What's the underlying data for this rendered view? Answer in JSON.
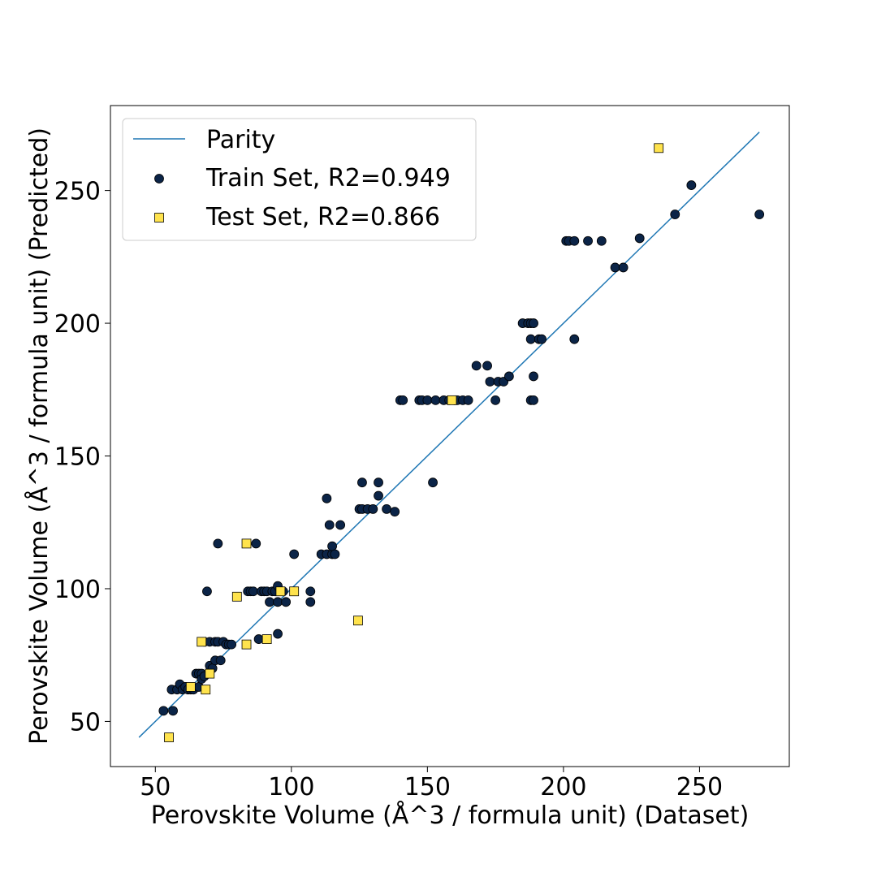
{
  "chart_data": {
    "type": "scatter",
    "xlabel": "Perovskite Volume (Å^3 / formula unit) (Dataset)",
    "ylabel": "Perovskite Volume (Å^3 / formula unit) (Predicted)",
    "xlim": [
      33.5,
      283
    ],
    "ylim": [
      33,
      282
    ],
    "xticks": [
      50,
      100,
      150,
      200,
      250
    ],
    "yticks": [
      50,
      100,
      150,
      200,
      250
    ],
    "grid": false,
    "legend_position": "top-left",
    "parity": {
      "name": "Parity",
      "color": "#1f77b4",
      "x": [
        44,
        272
      ],
      "y": [
        44,
        272
      ]
    },
    "series": [
      {
        "name": "Train Set, R2=0.949",
        "marker": "circle",
        "color": "#0b2447",
        "points": [
          [
            53,
            54
          ],
          [
            56.5,
            54
          ],
          [
            56,
            62
          ],
          [
            58,
            62
          ],
          [
            59,
            64
          ],
          [
            60,
            62
          ],
          [
            61,
            63
          ],
          [
            62,
            62
          ],
          [
            63,
            62
          ],
          [
            64,
            62
          ],
          [
            65,
            68
          ],
          [
            66,
            68
          ],
          [
            66,
            63
          ],
          [
            67,
            68
          ],
          [
            67,
            66
          ],
          [
            68,
            67
          ],
          [
            68,
            80
          ],
          [
            69,
            99
          ],
          [
            70,
            80
          ],
          [
            70,
            71
          ],
          [
            71,
            70
          ],
          [
            72,
            73
          ],
          [
            72,
            80
          ],
          [
            73,
            80
          ],
          [
            73,
            117
          ],
          [
            74,
            73
          ],
          [
            75,
            80
          ],
          [
            76,
            79
          ],
          [
            77,
            79
          ],
          [
            78,
            79
          ],
          [
            84,
            99
          ],
          [
            85,
            99
          ],
          [
            86,
            99
          ],
          [
            87,
            117
          ],
          [
            88,
            81
          ],
          [
            89,
            99
          ],
          [
            90,
            99
          ],
          [
            91,
            99
          ],
          [
            92,
            95
          ],
          [
            93,
            99
          ],
          [
            94,
            99
          ],
          [
            95,
            101
          ],
          [
            95,
            95
          ],
          [
            95,
            83
          ],
          [
            97,
            99
          ],
          [
            98,
            95
          ],
          [
            101,
            113
          ],
          [
            107,
            99
          ],
          [
            107,
            95
          ],
          [
            111,
            113
          ],
          [
            113,
            134
          ],
          [
            113,
            113
          ],
          [
            114,
            124
          ],
          [
            115,
            113
          ],
          [
            115,
            116
          ],
          [
            116,
            113
          ],
          [
            118,
            124
          ],
          [
            125,
            130
          ],
          [
            126,
            130
          ],
          [
            126,
            140
          ],
          [
            128,
            130
          ],
          [
            130,
            130
          ],
          [
            132,
            140
          ],
          [
            132,
            135
          ],
          [
            135,
            130
          ],
          [
            138,
            129
          ],
          [
            140,
            171
          ],
          [
            141,
            171
          ],
          [
            147,
            171
          ],
          [
            148,
            171
          ],
          [
            150,
            171
          ],
          [
            152,
            140
          ],
          [
            153,
            171
          ],
          [
            156,
            171
          ],
          [
            158,
            171
          ],
          [
            160,
            171
          ],
          [
            161,
            171
          ],
          [
            163,
            171
          ],
          [
            165,
            171
          ],
          [
            168,
            184
          ],
          [
            172,
            184
          ],
          [
            173,
            178
          ],
          [
            175,
            171
          ],
          [
            176,
            178
          ],
          [
            178,
            178
          ],
          [
            180,
            180
          ],
          [
            185,
            200
          ],
          [
            187,
            200
          ],
          [
            188,
            194
          ],
          [
            188,
            200
          ],
          [
            188,
            171
          ],
          [
            189,
            200
          ],
          [
            189,
            171
          ],
          [
            189,
            180
          ],
          [
            191,
            194
          ],
          [
            192,
            194
          ],
          [
            201,
            231
          ],
          [
            202,
            231
          ],
          [
            204,
            231
          ],
          [
            204,
            194
          ],
          [
            209,
            231
          ],
          [
            214,
            231
          ],
          [
            219,
            221
          ],
          [
            222,
            221
          ],
          [
            228,
            232
          ],
          [
            241,
            241
          ],
          [
            247,
            252
          ],
          [
            272,
            241
          ]
        ]
      },
      {
        "name": "Test Set, R2=0.866",
        "marker": "square",
        "color": "#ffe34d",
        "points": [
          [
            55,
            44
          ],
          [
            63,
            63
          ],
          [
            67,
            80
          ],
          [
            68.5,
            62
          ],
          [
            70,
            68
          ],
          [
            80,
            97
          ],
          [
            83.5,
            117
          ],
          [
            83.5,
            79
          ],
          [
            91,
            81
          ],
          [
            96,
            99
          ],
          [
            101,
            99
          ],
          [
            124.5,
            88
          ],
          [
            159,
            171
          ],
          [
            235,
            266
          ]
        ]
      }
    ]
  }
}
